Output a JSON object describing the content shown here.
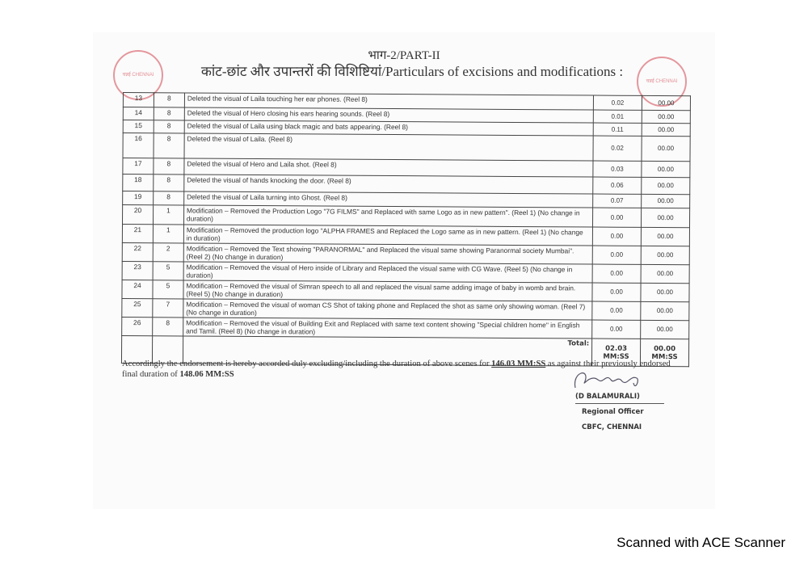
{
  "header": {
    "part": "भाग-2/PART-II",
    "title": "कांट-छांट और उपान्तरों की विशिष्टियां/Particulars of excisions and modifications :"
  },
  "rows": [
    {
      "no": "13",
      "reel": "8",
      "desc": "Deleted the visual of Laila touching her ear phones. (Reel 8)",
      "duration": "0.02",
      "inserted": "00.00"
    },
    {
      "no": "14",
      "reel": "8",
      "desc": "Deleted the visual of Hero closing his ears hearing sounds. (Reel 8)",
      "duration": "0.01",
      "inserted": "00.00"
    },
    {
      "no": "15",
      "reel": "8",
      "desc": "Deleted the visual of Laila using black magic and bats appearing. (Reel 8)",
      "duration": "0.11",
      "inserted": "00.00"
    },
    {
      "no": "16",
      "reel": "8",
      "desc": "Deleted the visual of Laila. (Reel 8)",
      "duration": "0.02",
      "inserted": "00.00"
    },
    {
      "no": "17",
      "reel": "8",
      "desc": "Deleted the visual of Hero and Laila shot. (Reel 8)",
      "duration": "0.03",
      "inserted": "00.00"
    },
    {
      "no": "18",
      "reel": "8",
      "desc": "Deleted the visual of hands knocking the door. (Reel 8)",
      "duration": "0.06",
      "inserted": "00.00"
    },
    {
      "no": "19",
      "reel": "8",
      "desc": "Deleted the visual of Laila turning into Ghost. (Reel 8)",
      "duration": "0.07",
      "inserted": "00.00"
    },
    {
      "no": "20",
      "reel": "1",
      "desc": "Modification – Removed the Production Logo \"7G FILMS\" and Replaced with same Logo as in new pattern\". (Reel 1) (No change in duration)",
      "duration": "0.00",
      "inserted": "00.00"
    },
    {
      "no": "21",
      "reel": "1",
      "desc": "Modification – Removed the production logo \"ALPHA FRAMES and Replaced the Logo same as in new pattern. (Reel 1) (No change in duration)",
      "duration": "0.00",
      "inserted": "00.00"
    },
    {
      "no": "22",
      "reel": "2",
      "desc": "Modification – Removed the Text showing \"PARANORMAL\" and Replaced the visual same showing Paranormal society Mumbai\". (Reel 2) (No change in duration)",
      "duration": "0.00",
      "inserted": "00.00"
    },
    {
      "no": "23",
      "reel": "5",
      "desc": "Modification – Removed the visual of Hero inside of Library and Replaced the visual same with CG Wave. (Reel 5) (No change in duration)",
      "duration": "0.00",
      "inserted": "00.00"
    },
    {
      "no": "24",
      "reel": "5",
      "desc": "Modification – Removed the visual of Simran speech to all and replaced the visual same adding image of baby in womb and brain. (Reel 5) (No change in duration)",
      "duration": "0.00",
      "inserted": "00.00"
    },
    {
      "no": "25",
      "reel": "7",
      "desc": "Modification – Removed the visual of woman CS Shot of taking phone and Replaced the shot as same only showing woman. (Reel 7) (No change in duration)",
      "duration": "0.00",
      "inserted": "00.00"
    },
    {
      "no": "26",
      "reel": "8",
      "desc": "Modification – Removed the visual of Building Exit and Replaced with same text content showing \"Special children home\" in English and Tamil. (Reel 8) (No change in duration)",
      "duration": "0.00",
      "inserted": "00.00"
    }
  ],
  "total": {
    "label": "Total:",
    "duration": "02.03",
    "inserted": "00.00",
    "unit": "MM:SS"
  },
  "endorsement": {
    "text1": "Accordingly the endorsement is hereby accorded duly excluding/including the duration of above scenes for ",
    "duration": "146.03 MM:SS",
    "text2": " as against their previously endorsed final duration of ",
    "final": "148.06 MM:SS"
  },
  "signatory": {
    "name": "(D BALAMURALI)",
    "role": "Regional Officer",
    "office": "CBFC, CHENNAI"
  },
  "stamp": {
    "text": "चन्नई CHENNAI"
  },
  "footer": "Scanned with ACE Scanner"
}
